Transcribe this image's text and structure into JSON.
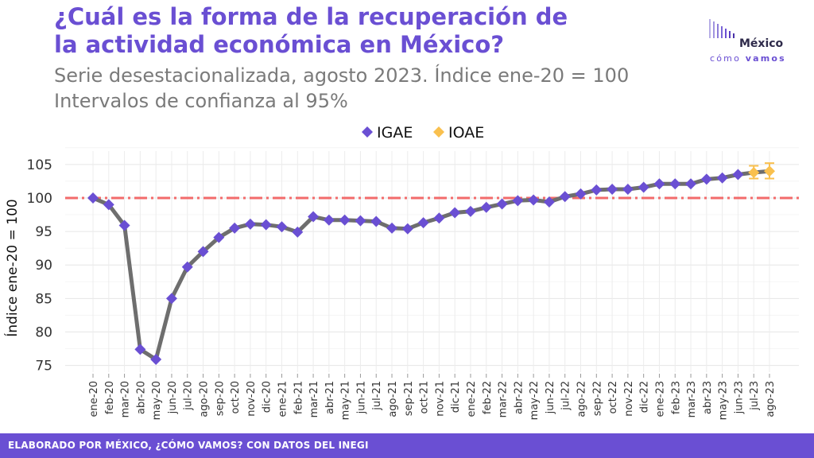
{
  "header": {
    "title_line1": "¿Cuál es la forma de la recuperación de",
    "title_line2": "la actividad económica en México?",
    "subtitle_line1": "Serie desestacionalizada, agosto 2023. Índice ene-20 = 100",
    "subtitle_line2": "Intervalos de confianza al 95%"
  },
  "logo": {
    "word1": "México",
    "word2a": "cómo",
    "word2b": "vamos"
  },
  "footer": {
    "text": "ELABORADO POR MÉXICO, ¿CÓMO VAMOS? CON DATOS DEL INEGI"
  },
  "colors": {
    "igae": "#6a4fd3",
    "ioae": "#f9c04e",
    "line": "#6e6e6e",
    "reference": "#f26b6b",
    "brand": "#6a4fd3"
  },
  "chart_data": {
    "type": "line",
    "ylabel": "Índice ene-20 = 100",
    "ylim": [
      74,
      107
    ],
    "yticks": [
      75,
      80,
      85,
      90,
      95,
      100,
      105
    ],
    "reference_line": 100,
    "legend_position": "top-center",
    "grid": true,
    "categories": [
      "ene-20",
      "feb-20",
      "mar-20",
      "abr-20",
      "may-20",
      "jun-20",
      "jul-20",
      "ago-20",
      "sep-20",
      "oct-20",
      "nov-20",
      "dic-20",
      "ene-21",
      "feb-21",
      "mar-21",
      "abr-21",
      "may-21",
      "jun-21",
      "jul-21",
      "ago-21",
      "sep-21",
      "oct-21",
      "nov-21",
      "dic-21",
      "ene-22",
      "feb-22",
      "mar-22",
      "abr-22",
      "may-22",
      "jun-22",
      "jul-22",
      "ago-22",
      "sep-22",
      "oct-22",
      "nov-22",
      "dic-22",
      "ene-23",
      "feb-23",
      "mar-23",
      "abr-23",
      "may-23",
      "jun-23",
      "jul-23",
      "ago-23"
    ],
    "series": [
      {
        "name": "IGAE",
        "marker": "diamond",
        "values": [
          100,
          99,
          95.9,
          77.4,
          75.9,
          85,
          89.7,
          92,
          94.1,
          95.5,
          96.1,
          96,
          95.7,
          94.9,
          97.2,
          96.7,
          96.7,
          96.6,
          96.5,
          95.5,
          95.4,
          96.3,
          97,
          97.8,
          98,
          98.6,
          99.1,
          99.6,
          99.7,
          99.4,
          100.2,
          100.6,
          101.2,
          101.3,
          101.3,
          101.6,
          102.1,
          102.1,
          102.1,
          102.8,
          103,
          103.5,
          null,
          null
        ]
      },
      {
        "name": "IOAE",
        "marker": "diamond",
        "values": [
          null,
          null,
          null,
          null,
          null,
          null,
          null,
          null,
          null,
          null,
          null,
          null,
          null,
          null,
          null,
          null,
          null,
          null,
          null,
          null,
          null,
          null,
          null,
          null,
          null,
          null,
          null,
          null,
          null,
          null,
          null,
          null,
          null,
          null,
          null,
          null,
          null,
          null,
          null,
          null,
          null,
          null,
          103.8,
          104
        ],
        "ci_low": [
          null,
          null,
          null,
          null,
          null,
          null,
          null,
          null,
          null,
          null,
          null,
          null,
          null,
          null,
          null,
          null,
          null,
          null,
          null,
          null,
          null,
          null,
          null,
          null,
          null,
          null,
          null,
          null,
          null,
          null,
          null,
          null,
          null,
          null,
          null,
          null,
          null,
          null,
          null,
          null,
          null,
          null,
          102.9,
          102.9
        ],
        "ci_high": [
          null,
          null,
          null,
          null,
          null,
          null,
          null,
          null,
          null,
          null,
          null,
          null,
          null,
          null,
          null,
          null,
          null,
          null,
          null,
          null,
          null,
          null,
          null,
          null,
          null,
          null,
          null,
          null,
          null,
          null,
          null,
          null,
          null,
          null,
          null,
          null,
          null,
          null,
          null,
          null,
          null,
          null,
          104.8,
          105.2
        ]
      }
    ]
  }
}
